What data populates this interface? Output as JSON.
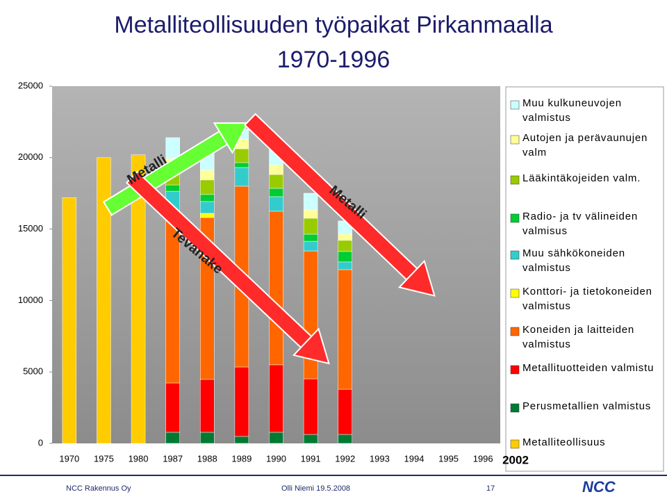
{
  "chart_data": {
    "type": "bar",
    "stacked": true,
    "title": "Metalliteollisuuden työpaikat Pirkanmaalla",
    "subtitle": "1970-1996",
    "categories": [
      "1970",
      "1975",
      "1980",
      "1987",
      "1988",
      "1989",
      "1990",
      "1991",
      "1992",
      "1993",
      "1994",
      "1995",
      "1996"
    ],
    "extra_category_label": "2002",
    "series": [
      {
        "name": "Muu kulkuneuvojen valmistus",
        "color": "#ccffff",
        "values": [
          null,
          null,
          null,
          1460,
          1460,
          700,
          1070,
          1170,
          920,
          null,
          null,
          null,
          null
        ]
      },
      {
        "name": "Autojen ja perävaunujen valm",
        "color": "#ffff99",
        "values": [
          null,
          null,
          null,
          830,
          680,
          680,
          680,
          580,
          440,
          null,
          null,
          null,
          null
        ]
      },
      {
        "name": "Lääkintäkojeiden valm.",
        "color": "#99cc00",
        "values": [
          null,
          null,
          null,
          1020,
          1020,
          970,
          970,
          1120,
          780,
          null,
          null,
          null,
          null
        ]
      },
      {
        "name": "Radio- ja tv välineiden valmisus",
        "color": "#00cc33",
        "values": [
          null,
          null,
          null,
          440,
          490,
          340,
          580,
          490,
          730,
          null,
          null,
          null,
          null
        ]
      },
      {
        "name": "Muu sähkökoneiden valmistus",
        "color": "#33cccc",
        "values": [
          null,
          null,
          null,
          1600,
          830,
          1310,
          1020,
          680,
          540,
          null,
          null,
          null,
          null
        ]
      },
      {
        "name": "Konttori- ja tietokoneiden valmistus",
        "color": "#ffff00",
        "values": [
          null,
          null,
          null,
          490,
          290,
          null,
          null,
          null,
          null,
          null,
          null,
          null,
          null
        ]
      },
      {
        "name": "Koneiden ja laitteiden valmistus",
        "color": "#ff6600",
        "values": [
          null,
          null,
          null,
          11330,
          11330,
          12650,
          10750,
          8950,
          8370,
          null,
          null,
          null,
          null
        ]
      },
      {
        "name": "Metallituotteiden valmistu",
        "color": "#ff0000",
        "values": [
          null,
          null,
          null,
          3450,
          3700,
          4860,
          4720,
          3890,
          3160,
          null,
          null,
          null,
          null
        ]
      },
      {
        "name": "Perusmetallien valmistus",
        "color": "#007a33",
        "values": [
          null,
          null,
          null,
          780,
          780,
          490,
          780,
          630,
          630,
          null,
          null,
          null,
          null
        ]
      },
      {
        "name": "Metalliteollisuus",
        "color": "#ffcc00",
        "values": [
          17200,
          20000,
          20200,
          null,
          null,
          null,
          null,
          null,
          null,
          null,
          null,
          null,
          null
        ]
      }
    ],
    "ylim": [
      0,
      25000
    ],
    "yticks": [
      0,
      5000,
      10000,
      15000,
      20000,
      25000
    ],
    "annotations": [
      "Metalli",
      "Tevanake",
      "Metalli"
    ]
  },
  "footer": {
    "company": "NCC Rakennus Oy",
    "author": "Olli Niemi  19.5.2008",
    "page": "17",
    "logo": "NCC"
  }
}
